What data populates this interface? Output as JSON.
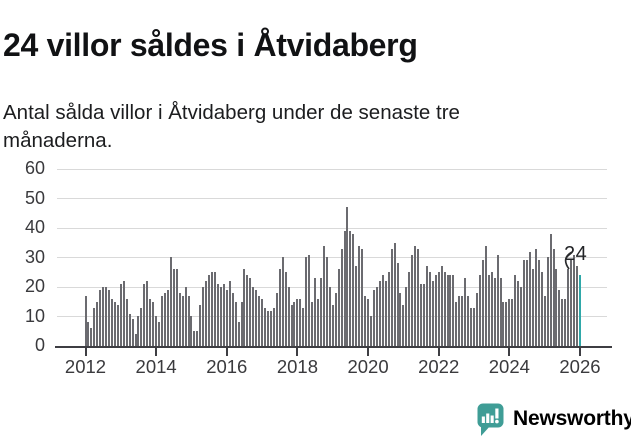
{
  "header": {
    "title": "24 villor såldes i Åtvidaberg",
    "subtitle": "Antal sålda villor i Åtvidaberg under de senaste tre månaderna."
  },
  "chart_data": {
    "type": "bar",
    "title": "24 villor såldes i Åtvidaberg",
    "xlabel": "",
    "ylabel": "",
    "x_start_month": "2012-01",
    "x_end_month": "2026-01",
    "x_tick_labels": [
      "2012",
      "2014",
      "2016",
      "2018",
      "2020",
      "2022",
      "2024",
      "2026"
    ],
    "y_ticks": [
      0,
      10,
      20,
      30,
      40,
      50,
      60
    ],
    "ylim": [
      0,
      62
    ],
    "grid": "horizontal",
    "values": [
      17,
      8,
      6,
      13,
      15,
      19,
      20,
      20,
      19,
      16,
      15,
      14,
      21,
      22,
      16,
      11,
      9,
      4,
      10,
      13,
      21,
      22,
      16,
      15,
      10,
      8,
      17,
      18,
      19,
      30,
      26,
      26,
      18,
      17,
      20,
      17,
      10,
      5,
      5,
      14,
      20,
      22,
      24,
      25,
      25,
      21,
      20,
      21,
      19,
      22,
      18,
      15,
      8,
      15,
      26,
      24,
      23,
      20,
      19,
      17,
      16,
      13,
      12,
      12,
      13,
      18,
      26,
      30,
      25,
      20,
      14,
      15,
      16,
      16,
      13,
      30,
      31,
      15,
      23,
      16,
      23,
      34,
      30,
      20,
      14,
      18,
      26,
      33,
      39,
      47,
      39,
      38,
      27,
      34,
      33,
      17,
      16,
      10,
      19,
      20,
      22,
      24,
      22,
      25,
      33,
      35,
      28,
      18,
      14,
      20,
      25,
      31,
      34,
      33,
      21,
      21,
      27,
      25,
      22,
      24,
      25,
      27,
      25,
      24,
      24,
      24,
      15,
      17,
      17,
      23,
      17,
      13,
      13,
      18,
      24,
      29,
      34,
      24,
      25,
      23,
      31,
      23,
      15,
      15,
      16,
      16,
      24,
      22,
      20,
      29,
      29,
      32,
      26,
      33,
      29,
      25,
      17,
      30,
      38,
      33,
      26,
      19,
      16,
      16,
      26,
      29,
      31,
      27,
      24
    ],
    "highlight_last_bar": true,
    "annotation": {
      "text": "24",
      "target": "last-bar"
    },
    "bar_color": "#6b6b70",
    "highlight_color": "#2fa8a9"
  },
  "footer": {
    "brand": "Newsworthy",
    "brand_color": "#3f9d96"
  }
}
